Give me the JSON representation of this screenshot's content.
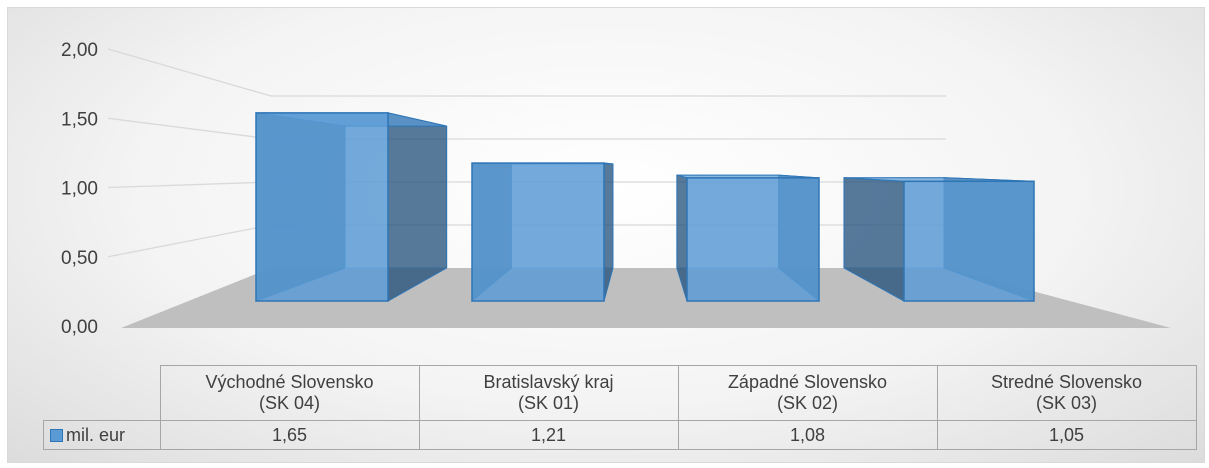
{
  "chart_data": {
    "type": "bar3d",
    "categories": [
      "Východné Slovensko\n(SK 04)",
      "Bratislavský kraj\n(SK 01)",
      "Západné Slovensko\n(SK 02)",
      "Stredné Slovensko\n(SK 03)"
    ],
    "series": [
      {
        "name": "mil. eur",
        "color": "#5b9bd5",
        "values": [
          1.65,
          1.21,
          1.08,
          1.05
        ],
        "value_labels": [
          "1,65",
          "1,21",
          "1,08",
          "1,05"
        ]
      }
    ],
    "ylim": [
      0,
      2
    ],
    "yticks": [
      {
        "value": 0,
        "label": "0,00"
      },
      {
        "value": 0.5,
        "label": "0,50"
      },
      {
        "value": 1,
        "label": "1,00"
      },
      {
        "value": 1.5,
        "label": "1,50"
      },
      {
        "value": 2,
        "label": "2,00"
      }
    ],
    "grid": true
  }
}
